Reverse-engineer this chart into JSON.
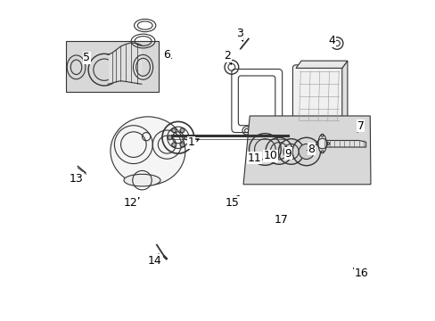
{
  "background_color": "#ffffff",
  "line_color": "#333333",
  "label_fontsize": 9,
  "label_color": "#000000"
}
